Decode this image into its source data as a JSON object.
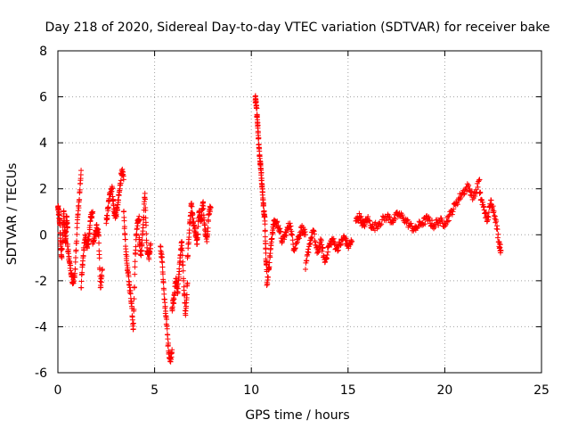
{
  "chart_data": {
    "type": "scatter",
    "title": "Day 218 of 2020, Sidereal Day-to-day VTEC variation (SDTVAR) for receiver bake",
    "xlabel": "GPS time / hours",
    "ylabel": "SDTVAR / TECUs",
    "xlim": [
      0,
      25
    ],
    "ylim": [
      -6,
      8
    ],
    "xticks": [
      0,
      5,
      10,
      15,
      20,
      25
    ],
    "yticks": [
      -6,
      -4,
      -2,
      0,
      2,
      4,
      6,
      8
    ],
    "xtick_labels": [
      "0",
      "5",
      "10",
      "15",
      "20",
      "25"
    ],
    "ytick_labels": [
      "-6",
      "-4",
      "-2",
      "0",
      "2",
      "4",
      "6",
      "8"
    ],
    "grid": true,
    "marker": "+",
    "series_color": "#ff0000",
    "series": [
      {
        "name": "SDTVAR",
        "segments": [
          {
            "x": [
              0.0,
              0.05,
              0.1,
              0.15,
              0.2,
              0.3,
              0.35,
              0.4,
              0.45,
              0.5
            ],
            "y": [
              1.2,
              0.9,
              0.5,
              -0.5,
              -1.0,
              1.0,
              0.2,
              -0.3,
              0.8,
              0.3
            ]
          },
          {
            "x": [
              0.5,
              0.6,
              0.7,
              0.8,
              0.9,
              1.0,
              1.1,
              1.2
            ],
            "y": [
              -0.5,
              -1.2,
              -1.8,
              -2.1,
              -1.5,
              0.5,
              1.5,
              2.8
            ]
          },
          {
            "x": [
              1.2,
              1.3,
              1.4,
              1.5,
              1.6,
              1.7,
              1.8
            ],
            "y": [
              -2.3,
              -1.0,
              0.0,
              -0.5,
              -0.2,
              0.8,
              1.0
            ]
          },
          {
            "x": [
              1.8,
              1.9,
              2.0,
              2.1,
              2.2,
              2.3
            ],
            "y": [
              -0.4,
              -0.1,
              0.3,
              0.0,
              -2.3,
              -1.5
            ]
          },
          {
            "x": [
              2.5,
              2.6,
              2.7,
              2.8,
              2.9,
              3.0,
              3.1,
              3.2,
              3.3,
              3.4
            ],
            "y": [
              0.5,
              1.2,
              1.8,
              2.1,
              1.0,
              0.8,
              1.3,
              2.0,
              2.8,
              2.4
            ]
          },
          {
            "x": [
              3.4,
              3.5,
              3.6,
              3.7,
              3.8,
              3.9,
              4.0,
              4.1,
              4.2
            ],
            "y": [
              1.0,
              -0.5,
              -1.5,
              -2.2,
              -2.9,
              -4.1,
              -0.8,
              0.5,
              0.8
            ]
          },
          {
            "x": [
              4.2,
              4.3,
              4.4,
              4.5,
              4.6,
              4.7,
              4.8
            ],
            "y": [
              -0.2,
              -0.9,
              0.3,
              1.8,
              -0.7,
              -1.0,
              -0.4
            ]
          },
          {
            "x": [
              5.3,
              5.4,
              5.5,
              5.6,
              5.7,
              5.8,
              5.9
            ],
            "y": [
              -0.5,
              -1.2,
              -2.8,
              -3.6,
              -4.8,
              -5.5,
              -5.0
            ]
          },
          {
            "x": [
              5.9,
              6.0,
              6.1,
              6.2,
              6.3,
              6.4,
              6.5,
              6.6,
              6.7
            ],
            "y": [
              -3.2,
              -2.8,
              -1.9,
              -2.5,
              -1.2,
              -0.3,
              -2.0,
              -3.5,
              -2.1
            ]
          },
          {
            "x": [
              6.7,
              6.8,
              6.9,
              7.0,
              7.1,
              7.2,
              7.3,
              7.4,
              7.5,
              7.6,
              7.7,
              7.8,
              7.9
            ],
            "y": [
              -1.0,
              0.2,
              1.3,
              0.5,
              0.1,
              -0.4,
              1.0,
              0.6,
              1.4,
              0.2,
              -0.3,
              0.9,
              1.2
            ]
          },
          {
            "x": [
              10.2,
              10.25,
              10.3,
              10.35,
              10.4,
              10.45,
              10.5,
              10.55,
              10.6,
              10.65,
              10.7,
              10.75,
              10.8
            ],
            "y": [
              6.0,
              5.6,
              5.2,
              4.5,
              3.8,
              3.2,
              2.8,
              2.2,
              1.6,
              1.0,
              0.6,
              -0.8,
              -1.6
            ]
          },
          {
            "x": [
              10.8,
              10.9,
              11.0,
              11.1,
              11.2,
              11.4,
              11.6,
              11.8,
              12.0,
              12.2,
              12.4,
              12.6,
              12.8
            ],
            "y": [
              -2.2,
              -1.5,
              -0.6,
              0.2,
              0.6,
              0.4,
              -0.3,
              0.1,
              0.5,
              -0.6,
              -0.2,
              0.3,
              0.0
            ]
          },
          {
            "x": [
              12.8,
              13.0,
              13.2,
              13.4,
              13.6,
              13.8,
              14.0,
              14.2,
              14.4,
              14.6,
              14.8,
              15.0,
              15.2
            ],
            "y": [
              -1.5,
              -0.4,
              0.2,
              -0.8,
              -0.3,
              -1.2,
              -0.5,
              -0.2,
              -0.6,
              -0.4,
              -0.1,
              -0.5,
              -0.3
            ]
          },
          {
            "x": [
              15.4,
              15.6,
              15.8,
              16.0,
              16.3,
              16.6,
              17.0,
              17.3,
              17.6,
              17.9,
              18.2,
              18.5
            ],
            "y": [
              0.6,
              0.8,
              0.4,
              0.7,
              0.3,
              0.5,
              0.8,
              0.6,
              0.9,
              0.7,
              0.4,
              0.2
            ]
          },
          {
            "x": [
              18.5,
              18.8,
              19.1,
              19.4,
              19.7,
              20.0,
              20.3,
              20.6,
              20.9,
              21.2,
              21.5,
              21.8
            ],
            "y": [
              0.3,
              0.5,
              0.7,
              0.4,
              0.6,
              0.5,
              0.9,
              1.4,
              1.8,
              2.1,
              1.6,
              2.4
            ]
          },
          {
            "x": [
              21.8,
              22.0,
              22.2,
              22.4,
              22.6,
              22.8,
              22.9
            ],
            "y": [
              1.8,
              1.2,
              0.6,
              1.5,
              0.8,
              -0.3,
              -0.7
            ]
          }
        ]
      }
    ]
  }
}
